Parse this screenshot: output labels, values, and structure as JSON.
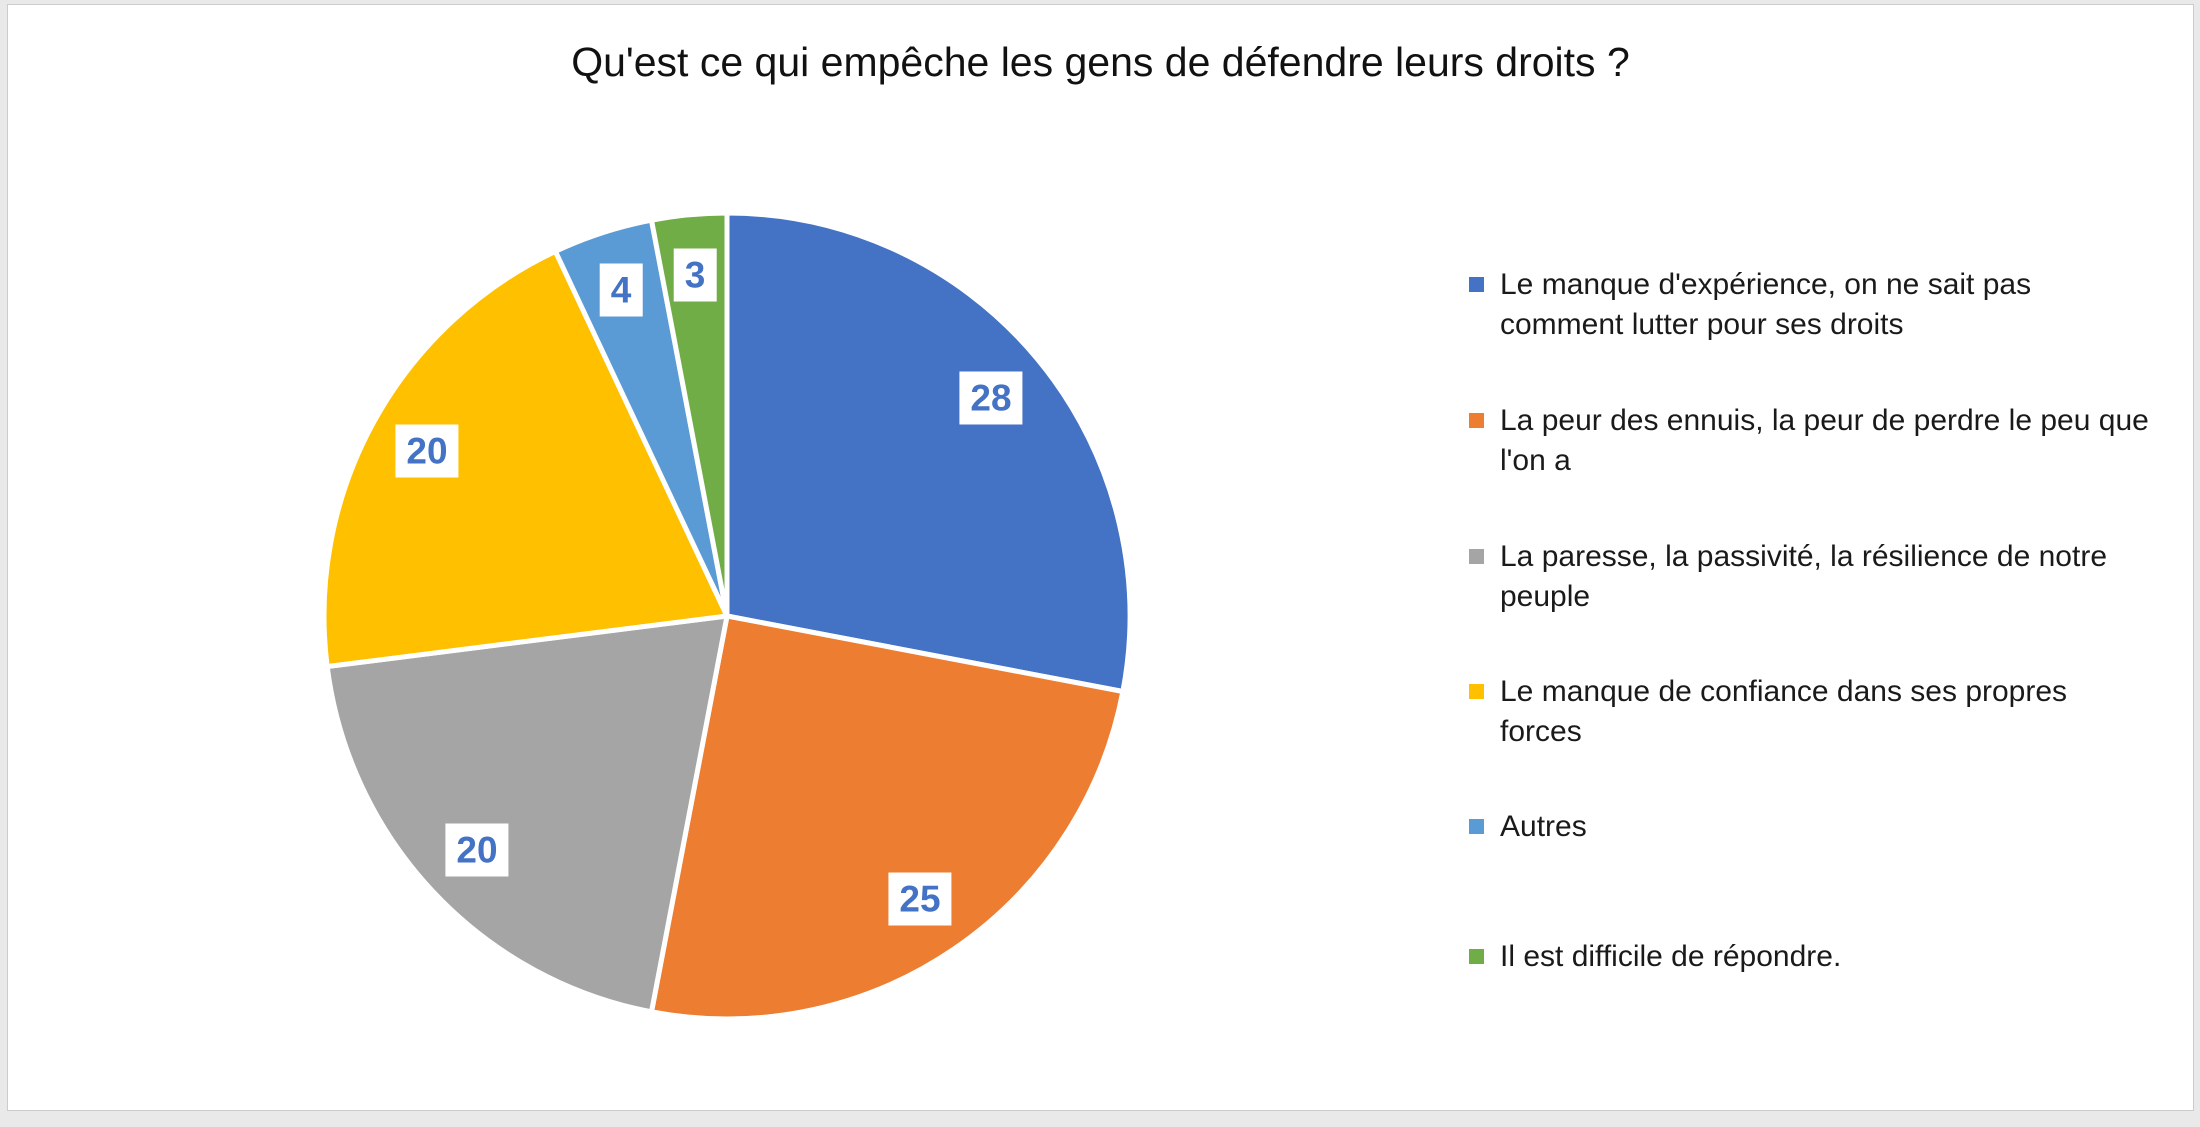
{
  "window": {
    "background": "#e9e9e9",
    "slide_background": "#ffffff",
    "slide_border_color": "#cccccc"
  },
  "chart_data": {
    "type": "pie",
    "title": "Qu'est ce qui empêche les gens de défendre leurs droits ?",
    "categories": [
      "Le manque d'expérience, on ne sait pas comment lutter pour ses droits",
      "La peur des ennuis, la peur de perdre le peu que l'on a",
      "La paresse, la passivité, la résilience de notre peuple",
      "Le manque de confiance dans ses propres forces",
      "Autres",
      "Il est difficile de répondre."
    ],
    "values": [
      28,
      25,
      20,
      20,
      4,
      3
    ],
    "colors": [
      "#4472C4",
      "#ED7D31",
      "#A5A5A5",
      "#FFC000",
      "#5B9BD5",
      "#70AD47"
    ],
    "total": 100,
    "start_angle_deg": 0,
    "direction": "clockwise",
    "slice_separator_color": "#FFFFFF",
    "data_labels_shown": true,
    "data_label_text_color": "#4472C4",
    "data_label_box_color": "#FFFFFF",
    "title_color": "#111111",
    "legend_position": "right",
    "legend_text_color": "#1a1a1a"
  }
}
